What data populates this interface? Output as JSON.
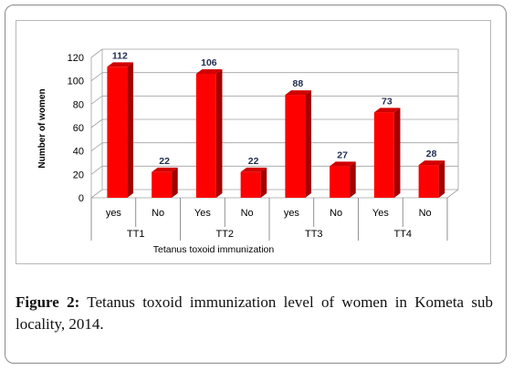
{
  "chart_data": {
    "type": "bar",
    "title": "",
    "ylabel": "Number of women",
    "xlabel": "Tetanus toxoid immunization",
    "ylim": [
      0,
      120
    ],
    "yticks": [
      0,
      20,
      40,
      60,
      80,
      100,
      120
    ],
    "groups": [
      "TT1",
      "TT2",
      "TT3",
      "TT4"
    ],
    "categories": [
      "yes",
      "No",
      "Yes",
      "No",
      "yes",
      "No",
      "Yes",
      "No"
    ],
    "values": [
      112,
      22,
      106,
      22,
      88,
      27,
      73,
      28
    ],
    "bar_color": "#ff0000",
    "grid": true,
    "style": "3d"
  },
  "caption": {
    "label": "Figure 2:",
    "text": " Tetanus toxoid immunization level of women in Kometa sub locality, 2014."
  }
}
